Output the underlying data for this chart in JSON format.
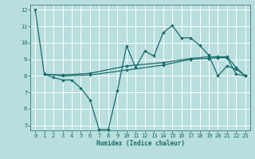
{
  "title": "",
  "xlabel": "Humidex (Indice chaleur)",
  "xlim": [
    -0.5,
    23.5
  ],
  "ylim": [
    4.7,
    12.3
  ],
  "yticks": [
    5,
    6,
    7,
    8,
    9,
    10,
    11,
    12
  ],
  "xticks": [
    0,
    1,
    2,
    3,
    4,
    5,
    6,
    7,
    8,
    9,
    10,
    11,
    12,
    13,
    14,
    15,
    16,
    17,
    18,
    19,
    20,
    21,
    22,
    23
  ],
  "bg_color": "#b8dede",
  "line_color": "#1a6b6b",
  "grid_color": "#d8f0f0",
  "lines": [
    {
      "x": [
        0,
        1,
        2,
        3,
        4,
        5,
        6,
        7,
        8,
        9,
        10,
        11,
        12,
        13,
        14,
        15,
        16,
        17,
        18,
        19,
        20,
        21,
        22,
        23
      ],
      "y": [
        12,
        8.1,
        7.9,
        7.75,
        7.75,
        7.25,
        6.55,
        4.75,
        4.75,
        7.1,
        9.8,
        8.5,
        9.5,
        9.2,
        10.6,
        11.05,
        10.3,
        10.3,
        9.85,
        9.25,
        8.0,
        8.6,
        8.4,
        8.0
      ]
    },
    {
      "x": [
        1,
        3,
        6,
        10,
        14,
        17,
        19,
        20,
        21,
        22,
        23
      ],
      "y": [
        8.1,
        8.05,
        8.15,
        8.6,
        8.8,
        9.05,
        9.15,
        9.15,
        9.15,
        8.5,
        8.0
      ]
    },
    {
      "x": [
        1,
        3,
        6,
        10,
        14,
        17,
        19,
        20,
        21,
        22,
        23
      ],
      "y": [
        8.1,
        8.0,
        8.05,
        8.35,
        8.65,
        9.0,
        9.05,
        9.1,
        9.1,
        8.1,
        8.0
      ]
    }
  ],
  "marker_size": 2.0,
  "linewidth": 0.9,
  "figsize": [
    3.2,
    2.0
  ],
  "dpi": 100
}
